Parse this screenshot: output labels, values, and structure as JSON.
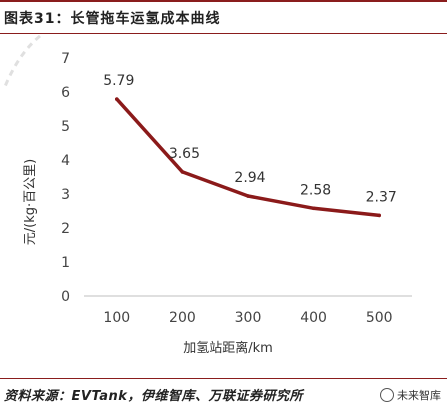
{
  "header": {
    "title": "图表31：长管拖车运氢成本曲线"
  },
  "footer": {
    "source": "资料来源：EVTank，伊维智库、万联证券研究所",
    "watermark": "未来智库"
  },
  "chart_data": {
    "type": "line",
    "title": "",
    "xlabel": "加氢站距离/km",
    "ylabel": "元/(kg·百公里)",
    "categories": [
      "100",
      "200",
      "300",
      "400",
      "500"
    ],
    "values": [
      5.79,
      3.65,
      2.94,
      2.58,
      2.37
    ],
    "data_labels": [
      "5.79",
      "3.65",
      "2.94",
      "2.58",
      "2.37"
    ],
    "ylim": [
      0,
      7
    ],
    "yticks": [
      "0",
      "1",
      "2",
      "3",
      "4",
      "5",
      "6",
      "7"
    ],
    "grid": false,
    "legend": "none",
    "line_color": "#8b1a1a"
  }
}
